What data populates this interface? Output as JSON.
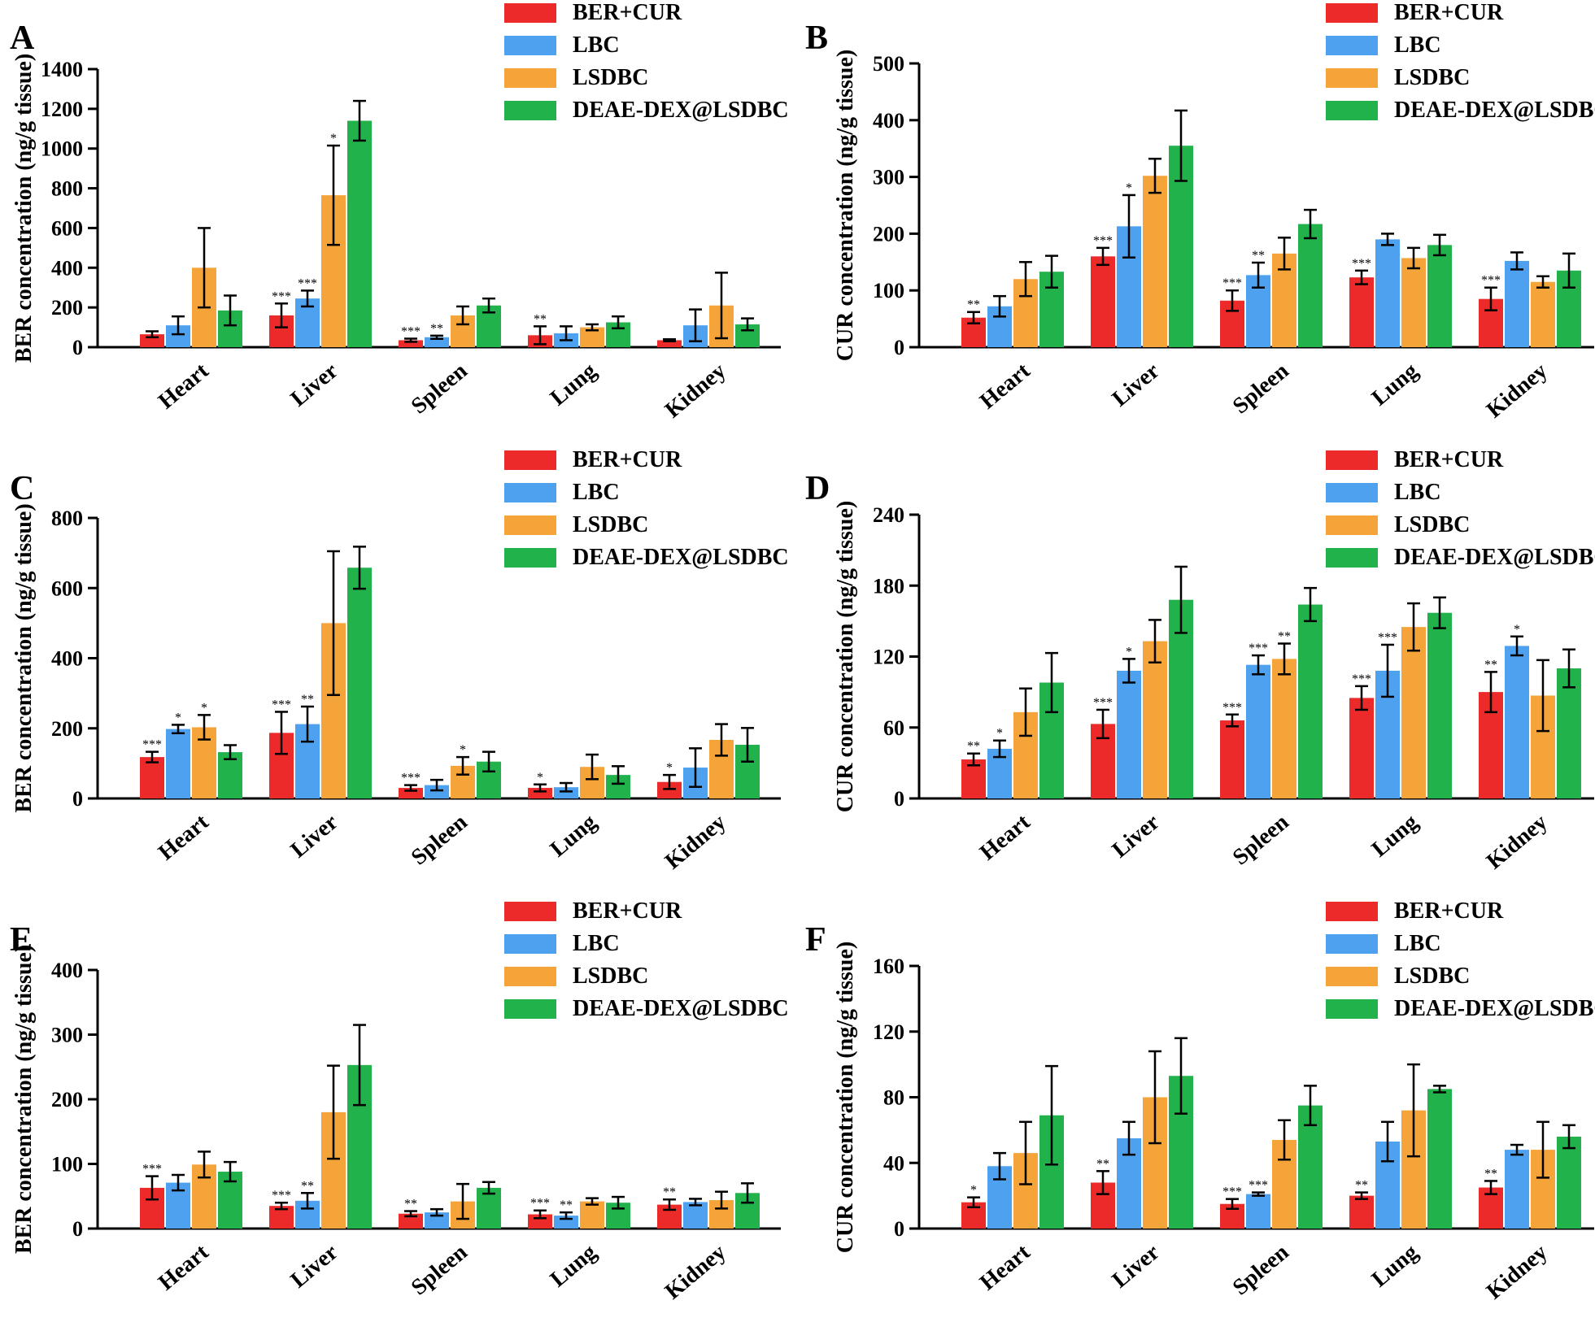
{
  "colors": {
    "BER+CUR": "#ed2a2a",
    "LBC": "#4ea1ee",
    "LSDBC": "#f5a43a",
    "DEAE-DEX@LSDBC": "#21b24b",
    "axis": "#000000"
  },
  "chart_data": [
    {
      "panel": "A",
      "type": "bar",
      "ylabel": "BER concentration (ng/g tissue)",
      "categories": [
        "Heart",
        "Liver",
        "Spleen",
        "Lung",
        "Kidney"
      ],
      "ylim": [
        0,
        1400
      ],
      "yticks": [
        0,
        200,
        400,
        600,
        800,
        1000,
        1200,
        1400
      ],
      "legend": [
        "BER+CUR",
        "LBC",
        "LSDBC",
        "DEAE-DEX@LSDBC"
      ],
      "series": [
        {
          "name": "BER+CUR",
          "values": [
            65,
            160,
            35,
            60,
            35
          ],
          "errors": [
            15,
            60,
            8,
            45,
            5
          ],
          "sig": [
            "",
            "***",
            "***",
            "**",
            ""
          ]
        },
        {
          "name": "LBC",
          "values": [
            110,
            245,
            50,
            70,
            110
          ],
          "errors": [
            45,
            40,
            8,
            35,
            80
          ],
          "sig": [
            "",
            "***",
            "**",
            "",
            ""
          ]
        },
        {
          "name": "LSDBC",
          "values": [
            400,
            765,
            160,
            100,
            210
          ],
          "errors": [
            200,
            250,
            45,
            15,
            165
          ],
          "sig": [
            "",
            "*",
            "",
            "",
            ""
          ]
        },
        {
          "name": "DEAE-DEX@LSDBC",
          "values": [
            185,
            1140,
            210,
            125,
            115
          ],
          "errors": [
            75,
            100,
            35,
            30,
            30
          ],
          "sig": [
            "",
            "",
            "",
            "",
            ""
          ]
        }
      ]
    },
    {
      "panel": "B",
      "type": "bar",
      "ylabel": "CUR concentration (ng/g tissue)",
      "categories": [
        "Heart",
        "Liver",
        "Spleen",
        "Lung",
        "Kidney"
      ],
      "ylim": [
        0,
        500
      ],
      "yticks": [
        0,
        100,
        200,
        300,
        400,
        500
      ],
      "legend": [
        "BER+CUR",
        "LBC",
        "LSDBC",
        "DEAE-DEX@LSDBC"
      ],
      "series": [
        {
          "name": "BER+CUR",
          "values": [
            52,
            160,
            82,
            123,
            85
          ],
          "errors": [
            10,
            15,
            18,
            12,
            20
          ],
          "sig": [
            "**",
            "***",
            "***",
            "***",
            "***"
          ]
        },
        {
          "name": "LBC",
          "values": [
            72,
            213,
            127,
            190,
            152
          ],
          "errors": [
            18,
            55,
            22,
            10,
            15
          ],
          "sig": [
            "",
            "*",
            "**",
            "",
            ""
          ]
        },
        {
          "name": "LSDBC",
          "values": [
            120,
            302,
            165,
            157,
            115
          ],
          "errors": [
            30,
            30,
            28,
            18,
            10
          ],
          "sig": [
            "",
            "",
            "",
            "",
            ""
          ]
        },
        {
          "name": "DEAE-DEX@LSDBC",
          "values": [
            133,
            355,
            217,
            180,
            135
          ],
          "errors": [
            28,
            62,
            25,
            18,
            30
          ],
          "sig": [
            "",
            "",
            "",
            "",
            ""
          ]
        }
      ]
    },
    {
      "panel": "C",
      "type": "bar",
      "ylabel": "BER concentration (ng/g tissue)",
      "categories": [
        "Heart",
        "Liver",
        "Spleen",
        "Lung",
        "Kidney"
      ],
      "ylim": [
        0,
        800
      ],
      "yticks": [
        0,
        200,
        400,
        600,
        800
      ],
      "legend": [
        "BER+CUR",
        "LBC",
        "LSDBC",
        "DEAE-DEX@LSDBC"
      ],
      "series": [
        {
          "name": "BER+CUR",
          "values": [
            118,
            187,
            30,
            30,
            47
          ],
          "errors": [
            15,
            60,
            8,
            10,
            20
          ],
          "sig": [
            "***",
            "***",
            "***",
            "*",
            "*"
          ]
        },
        {
          "name": "LBC",
          "values": [
            198,
            212,
            38,
            32,
            88
          ],
          "errors": [
            12,
            50,
            15,
            12,
            55
          ],
          "sig": [
            "*",
            "**",
            "",
            "",
            ""
          ]
        },
        {
          "name": "LSDBC",
          "values": [
            203,
            500,
            93,
            90,
            167
          ],
          "errors": [
            35,
            205,
            25,
            35,
            45
          ],
          "sig": [
            "*",
            "",
            "*",
            "",
            ""
          ]
        },
        {
          "name": "DEAE-DEX@LSDBC",
          "values": [
            132,
            658,
            105,
            67,
            153
          ],
          "errors": [
            20,
            60,
            28,
            25,
            48
          ],
          "sig": [
            "",
            "",
            "",
            "",
            ""
          ]
        }
      ]
    },
    {
      "panel": "D",
      "type": "bar",
      "ylabel": "CUR concentration (ng/g tissue)",
      "categories": [
        "Heart",
        "Liver",
        "Spleen",
        "Lung",
        "Kidney"
      ],
      "ylim": [
        0,
        240
      ],
      "yticks": [
        0,
        60,
        120,
        180,
        240
      ],
      "legend": [
        "BER+CUR",
        "LBC",
        "LSDBC",
        "DEAE-DEX@LSDBC"
      ],
      "series": [
        {
          "name": "BER+CUR",
          "values": [
            33,
            63,
            66,
            85,
            90
          ],
          "errors": [
            5,
            12,
            5,
            10,
            17
          ],
          "sig": [
            "**",
            "***",
            "***",
            "***",
            "**"
          ]
        },
        {
          "name": "LBC",
          "values": [
            42,
            108,
            113,
            108,
            129
          ],
          "errors": [
            7,
            10,
            8,
            22,
            8
          ],
          "sig": [
            "*",
            "*",
            "***",
            "***",
            "*"
          ]
        },
        {
          "name": "LSDBC",
          "values": [
            73,
            133,
            118,
            145,
            87
          ],
          "errors": [
            20,
            18,
            13,
            20,
            30
          ],
          "sig": [
            "",
            "",
            "**",
            "",
            ""
          ]
        },
        {
          "name": "DEAE-DEX@LSDBC",
          "values": [
            98,
            168,
            164,
            157,
            110
          ],
          "errors": [
            25,
            28,
            14,
            13,
            16
          ],
          "sig": [
            "",
            "",
            "",
            "",
            ""
          ]
        }
      ]
    },
    {
      "panel": "E",
      "type": "bar",
      "ylabel": "BER concentration (ng/g tissue)",
      "categories": [
        "Heart",
        "Liver",
        "Spleen",
        "Lung",
        "Kidney"
      ],
      "ylim": [
        0,
        400
      ],
      "yticks": [
        0,
        100,
        200,
        300,
        400
      ],
      "legend": [
        "BER+CUR",
        "LBC",
        "LSDBC",
        "DEAE-DEX@LSDBC"
      ],
      "series": [
        {
          "name": "BER+CUR",
          "values": [
            63,
            35,
            23,
            22,
            37
          ],
          "errors": [
            18,
            5,
            4,
            6,
            8
          ],
          "sig": [
            "***",
            "***",
            "**",
            "***",
            "**"
          ]
        },
        {
          "name": "LBC",
          "values": [
            71,
            43,
            25,
            20,
            41
          ],
          "errors": [
            12,
            12,
            5,
            5,
            5
          ],
          "sig": [
            "",
            "**",
            "",
            "**",
            ""
          ]
        },
        {
          "name": "LSDBC",
          "values": [
            99,
            180,
            42,
            42,
            44
          ],
          "errors": [
            20,
            72,
            27,
            5,
            13
          ],
          "sig": [
            "",
            "",
            "",
            "",
            ""
          ]
        },
        {
          "name": "DEAE-DEX@LSDBC",
          "values": [
            88,
            253,
            63,
            40,
            55
          ],
          "errors": [
            15,
            62,
            9,
            9,
            15
          ],
          "sig": [
            "",
            "",
            "",
            "",
            ""
          ]
        }
      ]
    },
    {
      "panel": "F",
      "type": "bar",
      "ylabel": "CUR concentration (ng/g tissue)",
      "categories": [
        "Heart",
        "Liver",
        "Spleen",
        "Lung",
        "Kidney"
      ],
      "ylim": [
        0,
        160
      ],
      "yticks": [
        0,
        40,
        80,
        120,
        160
      ],
      "legend": [
        "BER+CUR",
        "LBC",
        "LSDBC",
        "DEAE-DEX@LSDBC"
      ],
      "series": [
        {
          "name": "BER+CUR",
          "values": [
            16,
            28,
            15,
            20,
            25
          ],
          "errors": [
            3,
            7,
            3,
            2,
            4
          ],
          "sig": [
            "*",
            "**",
            "***",
            "**",
            "**"
          ]
        },
        {
          "name": "LBC",
          "values": [
            38,
            55,
            21,
            53,
            48
          ],
          "errors": [
            8,
            10,
            1,
            12,
            3
          ],
          "sig": [
            "",
            "",
            "***",
            "",
            ""
          ]
        },
        {
          "name": "LSDBC",
          "values": [
            46,
            80,
            54,
            72,
            48
          ],
          "errors": [
            19,
            28,
            12,
            28,
            17
          ],
          "sig": [
            "",
            "",
            "",
            "",
            ""
          ]
        },
        {
          "name": "DEAE-DEX@LSDBC",
          "values": [
            69,
            93,
            75,
            85,
            56
          ],
          "errors": [
            30,
            23,
            12,
            2,
            7
          ],
          "sig": [
            "",
            "",
            "",
            "",
            ""
          ]
        }
      ]
    }
  ]
}
